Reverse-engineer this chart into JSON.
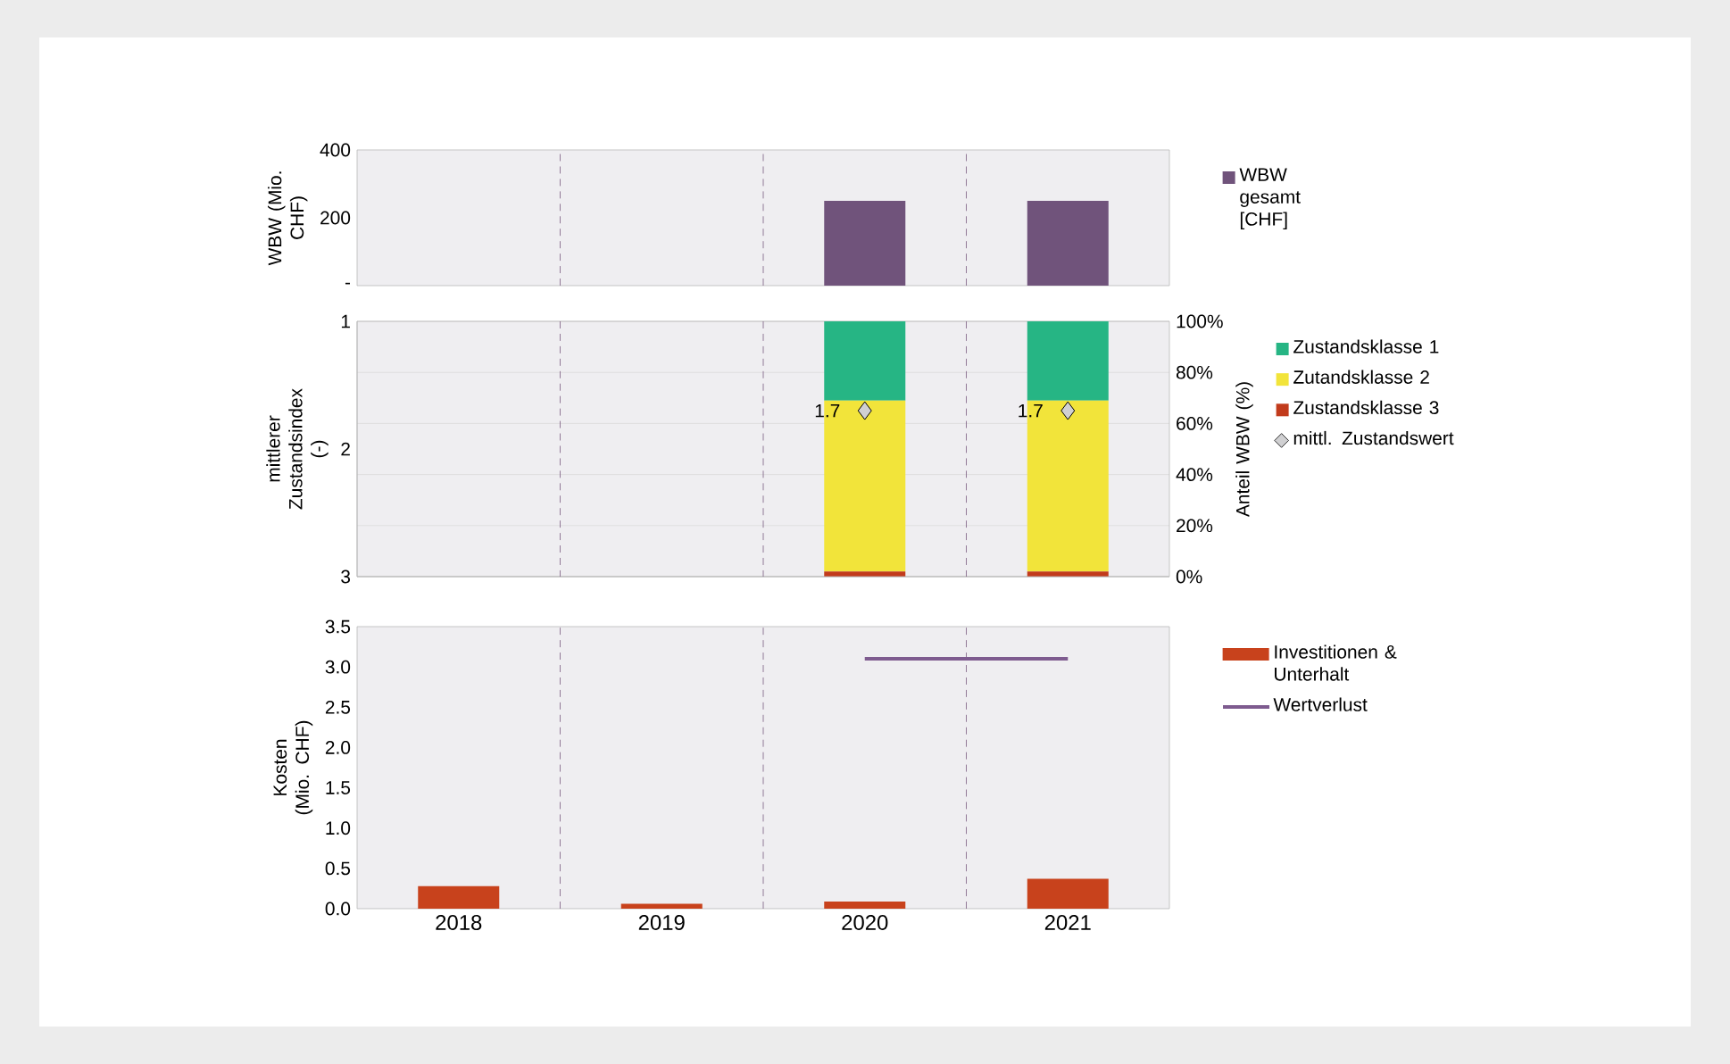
{
  "chart_data": [
    {
      "type": "bar",
      "categories": [
        "2018",
        "2019",
        "2020",
        "2021"
      ],
      "ylabel": "WBW (Mio. CHF)",
      "ylim": [
        0,
        400
      ],
      "yticks": [
        {
          "value": 0,
          "label": "-"
        },
        200,
        400
      ],
      "tick_labels": "y",
      "legend": "right",
      "series": [
        {
          "name": "WBW gesamt [CHF]",
          "color": "#70537b",
          "values": [
            null,
            null,
            250,
            250
          ]
        }
      ]
    },
    {
      "type": "bar",
      "categories": [
        "2018",
        "2019",
        "2020",
        "2021"
      ],
      "ylabel": "mittlerer Zustandsindex (-)",
      "ylim": [
        3,
        1
      ],
      "yticks": [
        1,
        2,
        3
      ],
      "y2label": "Anteil WBW (%)",
      "y2lim": [
        0,
        100
      ],
      "y2ticks": [
        {
          "value": 0,
          "label": "0%"
        },
        {
          "value": 20,
          "label": "20%"
        },
        {
          "value": 40,
          "label": "40%"
        },
        {
          "value": 60,
          "label": "60%"
        },
        {
          "value": 80,
          "label": "80%"
        },
        {
          "value": 100,
          "label": "100%"
        }
      ],
      "stacked": true,
      "grid": "y2",
      "tick_labels": "y",
      "legend": "right",
      "series": [
        {
          "name": "Zustandsklasse 3",
          "color": "#c23b1c",
          "axis": "y2",
          "values": [
            null,
            null,
            2,
            2
          ]
        },
        {
          "name": "Zutandsklasse 2",
          "color": "#f2e43a",
          "axis": "y2",
          "values": [
            null,
            null,
            67,
            67
          ]
        },
        {
          "name": "Zustandsklasse 1",
          "color": "#26b584",
          "axis": "y2",
          "values": [
            null,
            null,
            31,
            31
          ]
        },
        {
          "name": "mittl. Zustandswert",
          "type": "scatter",
          "marker": "diamond",
          "color": "#d0d0d2",
          "values": [
            null,
            null,
            1.7,
            1.7
          ],
          "value_labels": [
            null,
            null,
            "1.7",
            "1.7"
          ]
        }
      ]
    },
    {
      "type": "bar",
      "categories": [
        "2018",
        "2019",
        "2020",
        "2021"
      ],
      "ylabel": "Kosten (Mio. CHF)",
      "ylim": [
        0,
        3.5
      ],
      "yticks": [
        {
          "value": 0,
          "label": "0.0"
        },
        0.5,
        {
          "value": 1,
          "label": "1.0"
        },
        1.5,
        {
          "value": 2,
          "label": "2.0"
        },
        2.5,
        {
          "value": 3,
          "label": "3.0"
        },
        3.5
      ],
      "legend": "right",
      "series": [
        {
          "name": "Investitionen & Unterhalt",
          "color": "#c8421c",
          "values": [
            0.28,
            0.06,
            0.09,
            0.37
          ]
        },
        {
          "name": "Wertverlust",
          "type": "line",
          "color": "#7e5b8f",
          "values": [
            null,
            null,
            3.1,
            3.1
          ]
        }
      ]
    }
  ]
}
